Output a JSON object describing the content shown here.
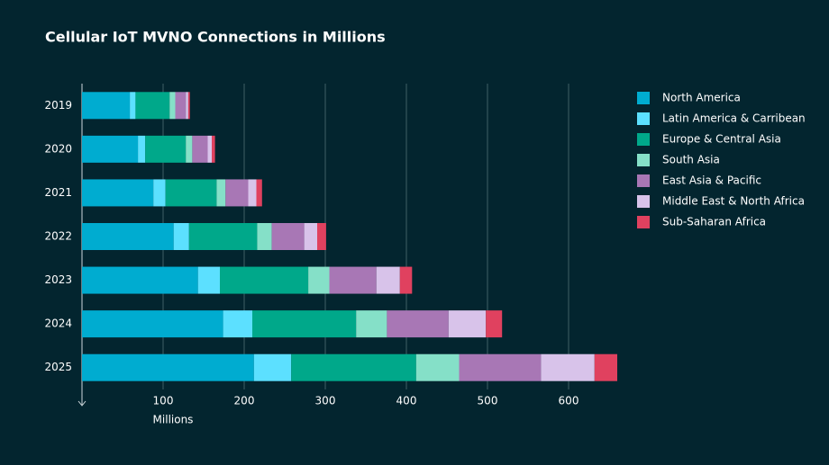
{
  "chart_data": {
    "type": "stacked-bar-horizontal",
    "title": "Cellular IoT MVNO Connections in Millions",
    "x_label": "Millions",
    "categories": [
      "2019",
      "2020",
      "2021",
      "2022",
      "2023",
      "2024",
      "2025"
    ],
    "series": [
      {
        "name": "North America",
        "color": "#00acd0",
        "values": [
          59,
          69,
          88,
          113,
          143,
          174,
          212
        ]
      },
      {
        "name": "Latin America & Carribean",
        "color": "#5ce0ff",
        "values": [
          7,
          9,
          15,
          19,
          27,
          36,
          46
        ]
      },
      {
        "name": "Europe & Central Asia",
        "color": "#00a88a",
        "values": [
          42,
          50,
          63,
          84,
          109,
          128,
          154
        ]
      },
      {
        "name": "South Asia",
        "color": "#85e0c8",
        "values": [
          7,
          8,
          11,
          18,
          26,
          38,
          53
        ]
      },
      {
        "name": "East Asia & Pacific",
        "color": "#a877b5",
        "values": [
          13,
          19,
          28,
          40,
          58,
          76,
          101
        ]
      },
      {
        "name": "Middle East & North Africa",
        "color": "#d8c3ea",
        "values": [
          3,
          5,
          10,
          16,
          29,
          46,
          66
        ]
      },
      {
        "name": "Sub-Saharan Africa",
        "color": "#e0415f",
        "values": [
          2,
          4,
          7,
          11,
          15,
          20,
          28
        ]
      }
    ],
    "xlim": [
      0,
      700
    ],
    "xticks": [
      100,
      200,
      300,
      400,
      500,
      600
    ],
    "grid": true,
    "legend": "right"
  }
}
